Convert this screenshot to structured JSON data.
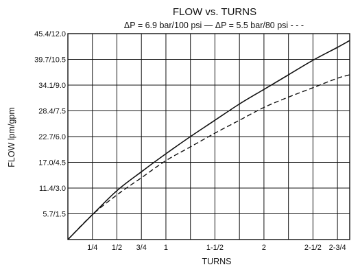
{
  "chart_data": {
    "type": "line",
    "title": "FLOW vs. TURNS",
    "subtitle": "ΔP = 6.9 bar/100 psi —   ΔP = 5.5 bar/80 psi - - -",
    "xlabel": "TURNS",
    "ylabel": "FLOW lpm/gpm",
    "xlim": [
      0,
      2.875
    ],
    "ylim": [
      0,
      12.0
    ],
    "grid": true,
    "x_grid": [
      0.25,
      0.5,
      0.75,
      1.0,
      1.25,
      1.5,
      1.75,
      2.0,
      2.25,
      2.5,
      2.75
    ],
    "y_grid": [
      1.5,
      3.0,
      4.5,
      6.0,
      7.5,
      9.0,
      10.5,
      12.0
    ],
    "x_ticks": [
      {
        "value": 0.25,
        "label": "1/4"
      },
      {
        "value": 0.5,
        "label": "1/2"
      },
      {
        "value": 0.75,
        "label": "3/4"
      },
      {
        "value": 1.0,
        "label": "1"
      },
      {
        "value": 1.5,
        "label": "1-1/2"
      },
      {
        "value": 2.0,
        "label": "2"
      },
      {
        "value": 2.5,
        "label": "2-1/2"
      },
      {
        "value": 2.75,
        "label": "2-3/4"
      }
    ],
    "y_ticks": [
      {
        "value": 1.5,
        "label": "5.7/1.5"
      },
      {
        "value": 3.0,
        "label": "11.4/3.0"
      },
      {
        "value": 4.5,
        "label": "17.0/4.5"
      },
      {
        "value": 6.0,
        "label": "22.7/6.0"
      },
      {
        "value": 7.5,
        "label": "28.4/7.5"
      },
      {
        "value": 9.0,
        "label": "34.1/9.0"
      },
      {
        "value": 10.5,
        "label": "39.7/10.5"
      },
      {
        "value": 12.0,
        "label": "45.4/12.0"
      }
    ],
    "series": [
      {
        "name": "ΔP = 6.9 bar/100 psi",
        "style": "solid",
        "color": "#111111",
        "x": [
          0,
          0.25,
          0.5,
          0.75,
          1.0,
          1.25,
          1.5,
          1.75,
          2.0,
          2.25,
          2.5,
          2.75,
          2.875
        ],
        "y": [
          0,
          1.45,
          2.85,
          3.95,
          5.0,
          6.0,
          6.95,
          7.9,
          8.75,
          9.6,
          10.45,
          11.2,
          11.6
        ]
      },
      {
        "name": "ΔP = 5.5 bar/80 psi",
        "style": "dashed",
        "color": "#111111",
        "x": [
          0,
          0.25,
          0.5,
          0.75,
          1.0,
          1.25,
          1.5,
          1.75,
          2.0,
          2.25,
          2.5,
          2.75,
          2.875
        ],
        "y": [
          0,
          1.45,
          2.6,
          3.6,
          4.6,
          5.4,
          6.2,
          6.95,
          7.7,
          8.3,
          8.85,
          9.4,
          9.6
        ]
      }
    ]
  }
}
